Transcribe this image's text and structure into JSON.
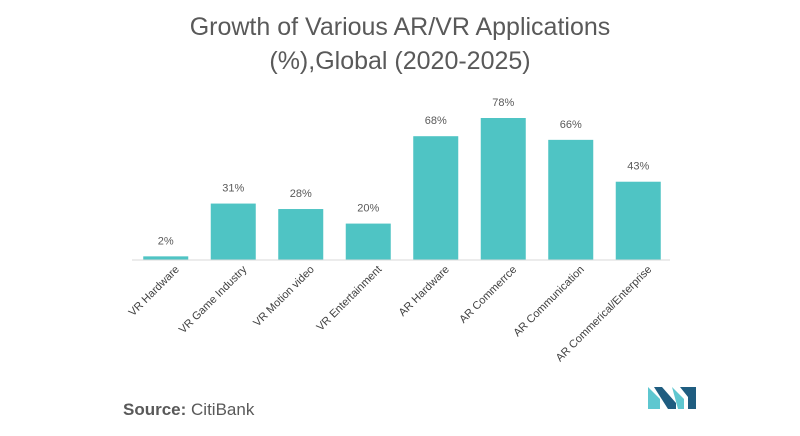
{
  "title_line1": "Growth of Various AR/VR Applications",
  "title_line2": "(%),Global (2020-2025)",
  "source_label": "Source:",
  "source_value": "CitiBank",
  "colors": {
    "bar": "#4fc4c4",
    "axis": "#d9d9d9",
    "text": "#595959",
    "logo_dark": "#1f5d80",
    "logo_light": "#5ec7d0"
  },
  "logo_icon": "mordor-logo-icon",
  "chart_data": {
    "type": "bar",
    "categories": [
      "VR Hardware",
      "VR Game Industry",
      "VR Motion video",
      "VR Entertainment",
      "AR Hardware",
      "AR Commerrce",
      "AR Communication",
      "AR Commerical/Enterprise"
    ],
    "values": [
      2,
      31,
      28,
      20,
      68,
      78,
      66,
      43
    ],
    "data_labels": [
      "2%",
      "31%",
      "28%",
      "20%",
      "68%",
      "78%",
      "66%",
      "43%"
    ],
    "ylim": [
      0,
      78
    ],
    "grid": false,
    "legend": "none"
  }
}
